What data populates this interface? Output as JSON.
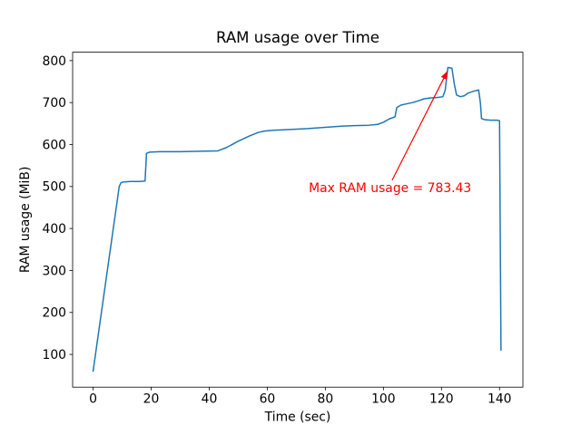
{
  "window": {
    "background": "#ffffff"
  },
  "chart_data": {
    "type": "line",
    "title": "RAM usage over Time",
    "xlabel": "Time (sec)",
    "ylabel": "RAM usage (MiB)",
    "xlim": [
      -7.05,
      148.05
    ],
    "ylim": [
      22,
      820
    ],
    "xticks": [
      0,
      20,
      40,
      60,
      80,
      100,
      120,
      140
    ],
    "yticks": [
      100,
      200,
      300,
      400,
      500,
      600,
      700,
      800
    ],
    "grid": false,
    "legend_position": "none",
    "line_color": "#1f77b4",
    "line_width": 1.5,
    "series": [
      {
        "name": "RAM usage",
        "points": [
          [
            0,
            60
          ],
          [
            9,
            500
          ],
          [
            9.6,
            509
          ],
          [
            10.5,
            511
          ],
          [
            13,
            512
          ],
          [
            16,
            512
          ],
          [
            17.9,
            513
          ],
          [
            18.4,
            579
          ],
          [
            19.5,
            582
          ],
          [
            23,
            583
          ],
          [
            30,
            583
          ],
          [
            37,
            584
          ],
          [
            43,
            585
          ],
          [
            46,
            593
          ],
          [
            50,
            608
          ],
          [
            54,
            621
          ],
          [
            57,
            629
          ],
          [
            59,
            632
          ],
          [
            62,
            634
          ],
          [
            68,
            636
          ],
          [
            74,
            638
          ],
          [
            80,
            641
          ],
          [
            86,
            644
          ],
          [
            90,
            645
          ],
          [
            95,
            646
          ],
          [
            98,
            648
          ],
          [
            100,
            653
          ],
          [
            102,
            661
          ],
          [
            104,
            666
          ],
          [
            104.6,
            688
          ],
          [
            106,
            694
          ],
          [
            108,
            697
          ],
          [
            110,
            700
          ],
          [
            112,
            704
          ],
          [
            114,
            709
          ],
          [
            116,
            711
          ],
          [
            118.5,
            712
          ],
          [
            120.5,
            714
          ],
          [
            121.3,
            730
          ],
          [
            122.2,
            783.43
          ],
          [
            123.6,
            782
          ],
          [
            124.4,
            745
          ],
          [
            125.2,
            718
          ],
          [
            126.5,
            714
          ],
          [
            127.8,
            716
          ],
          [
            129.3,
            723
          ],
          [
            131,
            727
          ],
          [
            132.8,
            730
          ],
          [
            133.4,
            700
          ],
          [
            133.8,
            662
          ],
          [
            135,
            659
          ],
          [
            137,
            658
          ],
          [
            139,
            658
          ],
          [
            140,
            657
          ],
          [
            140.5,
            110
          ]
        ]
      }
    ],
    "max_value": 783.43,
    "annotation": {
      "text": "Max RAM usage = 783.43",
      "color": "#ff0000",
      "text_pos": [
        74.3,
        486.6
      ],
      "arrow_start": [
        103.0,
        515.0
      ],
      "arrow_tip": [
        122.05,
        775.0
      ],
      "target_xy": [
        122.2,
        783.43
      ]
    }
  }
}
